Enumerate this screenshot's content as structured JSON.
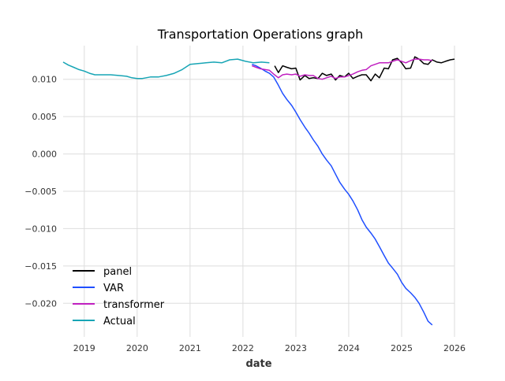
{
  "chart_data": {
    "type": "line",
    "title": "Transportation Operations graph",
    "xlabel": "date",
    "ylabel": "",
    "xlim": [
      2018.6,
      2026.0
    ],
    "ylim": [
      -0.0245,
      0.0145
    ],
    "x_ticks": [
      2019,
      2020,
      2021,
      2022,
      2023,
      2024,
      2025,
      2026
    ],
    "x_tick_labels": [
      "2019",
      "2020",
      "2021",
      "2022",
      "2023",
      "2024",
      "2025",
      "2026"
    ],
    "y_ticks": [
      0.01,
      0.005,
      0.0,
      -0.005,
      -0.01,
      -0.015,
      -0.02
    ],
    "y_tick_labels": [
      "0.010",
      "0.005",
      "0.000",
      "−0.005",
      "−0.010",
      "−0.015",
      "−0.020"
    ],
    "grid": true,
    "legend_position": "lower-left",
    "series": [
      {
        "name": "panel",
        "color": "#000000",
        "x": [
          2022.6,
          2022.67,
          2022.75,
          2022.83,
          2022.92,
          2023.0,
          2023.08,
          2023.17,
          2023.25,
          2023.33,
          2023.42,
          2023.5,
          2023.58,
          2023.67,
          2023.75,
          2023.83,
          2023.92,
          2024.0,
          2024.08,
          2024.17,
          2024.25,
          2024.33,
          2024.42,
          2024.5,
          2024.58,
          2024.67,
          2024.75,
          2024.83,
          2024.92,
          2025.0,
          2025.08,
          2025.17,
          2025.25,
          2025.33,
          2025.42,
          2025.5,
          2025.58,
          2025.67,
          2025.75,
          2025.83,
          2025.92,
          2026.0
        ],
        "y": [
          0.0118,
          0.0109,
          0.0118,
          0.0116,
          0.0114,
          0.0115,
          0.0099,
          0.0105,
          0.0101,
          0.0102,
          0.0101,
          0.0108,
          0.0105,
          0.0107,
          0.0099,
          0.0105,
          0.0103,
          0.0108,
          0.0101,
          0.0104,
          0.0106,
          0.0106,
          0.0098,
          0.0107,
          0.0102,
          0.0115,
          0.0114,
          0.0126,
          0.0128,
          0.0122,
          0.0114,
          0.0115,
          0.013,
          0.0127,
          0.0121,
          0.012,
          0.0126,
          0.0123,
          0.0122,
          0.0124,
          0.0126,
          0.0127
        ]
      },
      {
        "name": "VAR",
        "color": "#1f4fff",
        "x": [
          2022.17,
          2022.25,
          2022.33,
          2022.42,
          2022.5,
          2022.58,
          2022.67,
          2022.75,
          2022.83,
          2022.92,
          2023.0,
          2023.08,
          2023.17,
          2023.25,
          2023.33,
          2023.42,
          2023.5,
          2023.58,
          2023.67,
          2023.75,
          2023.83,
          2023.92,
          2024.0,
          2024.08,
          2024.17,
          2024.25,
          2024.33,
          2024.42,
          2024.5,
          2024.58,
          2024.67,
          2024.75,
          2024.83,
          2024.92,
          2025.0,
          2025.08,
          2025.17,
          2025.25,
          2025.33,
          2025.42,
          2025.5,
          2025.58
        ],
        "y": [
          0.012,
          0.0118,
          0.0115,
          0.0111,
          0.0108,
          0.0103,
          0.0092,
          0.0081,
          0.0073,
          0.0065,
          0.0056,
          0.0046,
          0.0036,
          0.0028,
          0.0019,
          0.001,
          0.0,
          -0.0008,
          -0.0016,
          -0.0027,
          -0.0038,
          -0.0047,
          -0.0054,
          -0.0063,
          -0.0075,
          -0.0088,
          -0.0098,
          -0.0106,
          -0.0114,
          -0.0124,
          -0.0136,
          -0.0146,
          -0.0153,
          -0.0161,
          -0.0172,
          -0.018,
          -0.0186,
          -0.0192,
          -0.02,
          -0.0212,
          -0.0224,
          -0.0229
        ]
      },
      {
        "name": "transformer",
        "color": "#c020c0",
        "x": [
          2022.17,
          2022.25,
          2022.33,
          2022.42,
          2022.5,
          2022.58,
          2022.67,
          2022.75,
          2022.83,
          2022.92,
          2023.0,
          2023.08,
          2023.17,
          2023.25,
          2023.33,
          2023.42,
          2023.5,
          2023.58,
          2023.67,
          2023.75,
          2023.83,
          2023.92,
          2024.0,
          2024.08,
          2024.17,
          2024.25,
          2024.33,
          2024.42,
          2024.5,
          2024.58,
          2024.67,
          2024.75,
          2024.83,
          2024.92,
          2025.0,
          2025.08,
          2025.17,
          2025.25,
          2025.33,
          2025.42,
          2025.5,
          2025.58
        ],
        "y": [
          0.0118,
          0.0116,
          0.0114,
          0.0113,
          0.0112,
          0.0107,
          0.0102,
          0.0106,
          0.0107,
          0.0106,
          0.0107,
          0.0104,
          0.0106,
          0.0105,
          0.0105,
          0.0101,
          0.01,
          0.0102,
          0.0104,
          0.0101,
          0.0103,
          0.0103,
          0.0105,
          0.0107,
          0.011,
          0.0112,
          0.0113,
          0.0118,
          0.012,
          0.0122,
          0.0122,
          0.0122,
          0.0124,
          0.0126,
          0.0124,
          0.0122,
          0.0125,
          0.0127,
          0.0127,
          0.0126,
          0.0126,
          0.0125
        ]
      },
      {
        "name": "Actual",
        "color": "#17a5b5",
        "x": [
          2018.6,
          2018.7,
          2018.8,
          2018.9,
          2019.0,
          2019.1,
          2019.2,
          2019.35,
          2019.5,
          2019.65,
          2019.8,
          2019.9,
          2020.0,
          2020.1,
          2020.25,
          2020.4,
          2020.55,
          2020.7,
          2020.85,
          2021.0,
          2021.15,
          2021.3,
          2021.45,
          2021.6,
          2021.75,
          2021.9,
          2022.05,
          2022.2,
          2022.35,
          2022.5
        ],
        "y": [
          0.0123,
          0.0119,
          0.0116,
          0.0113,
          0.0111,
          0.0108,
          0.0106,
          0.0106,
          0.0106,
          0.0105,
          0.0104,
          0.0102,
          0.0101,
          0.0101,
          0.0103,
          0.0103,
          0.0105,
          0.0108,
          0.0113,
          0.012,
          0.0121,
          0.0122,
          0.0123,
          0.0122,
          0.0126,
          0.0127,
          0.0124,
          0.0122,
          0.0123,
          0.0122
        ]
      }
    ]
  }
}
